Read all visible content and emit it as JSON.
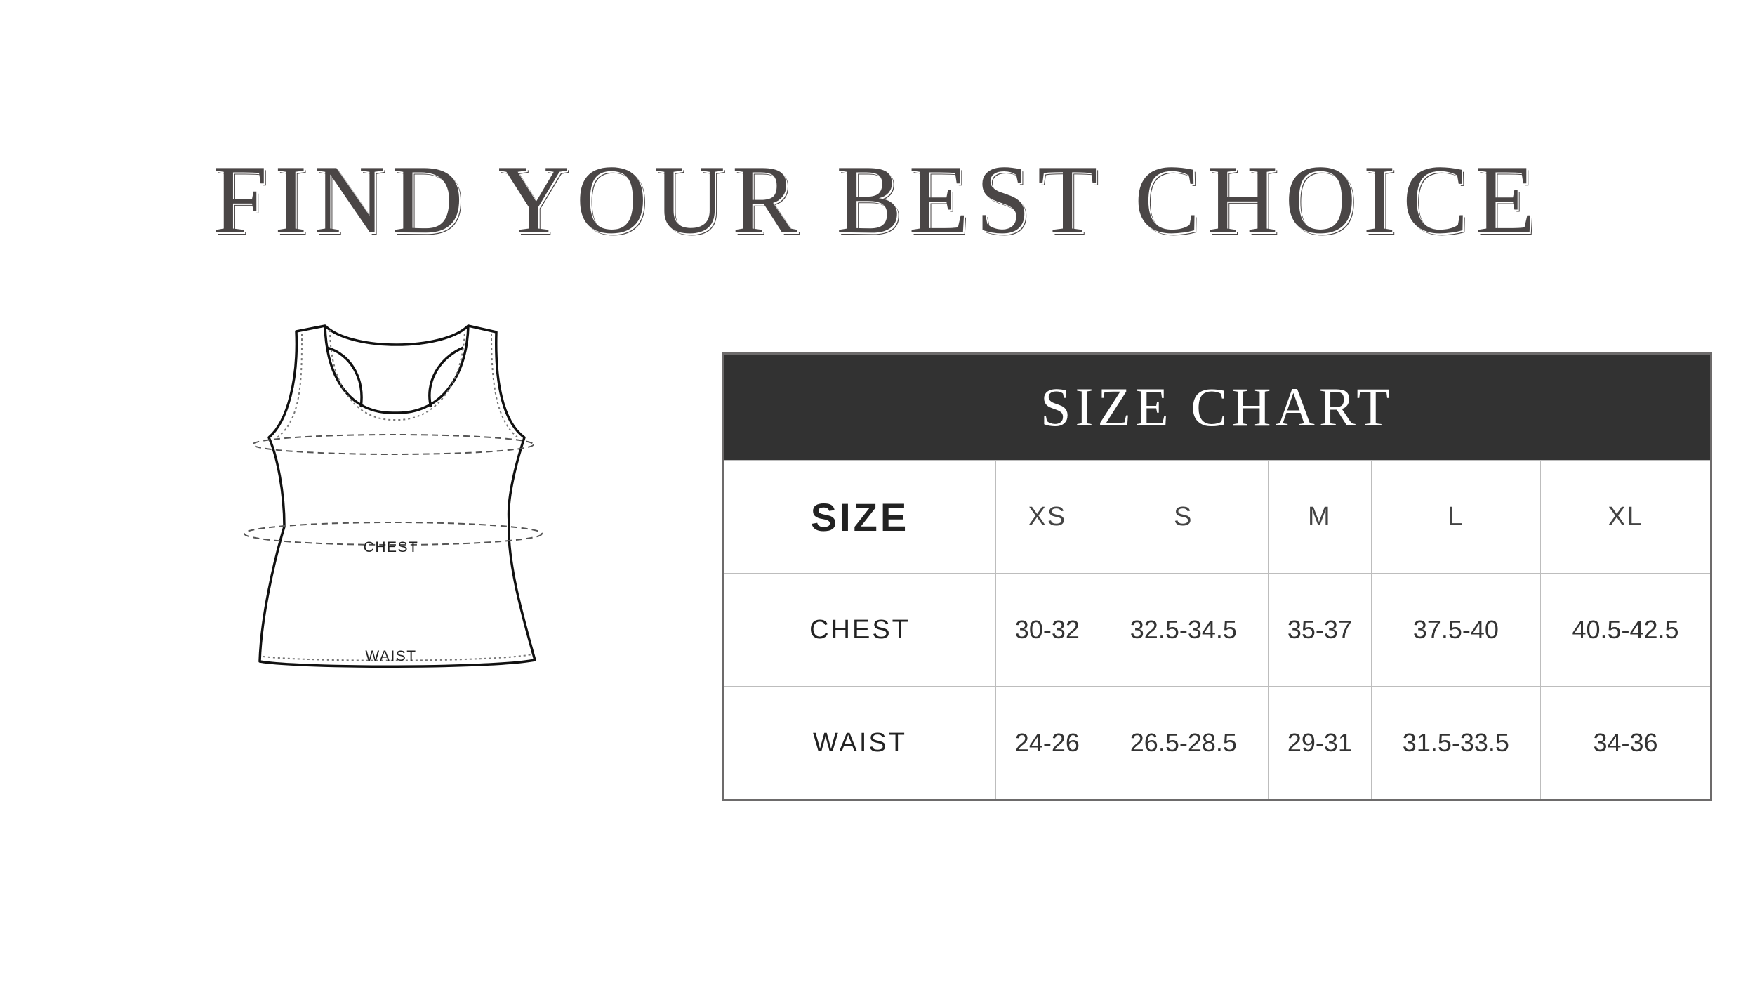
{
  "title": "FIND YOUR BEST CHOICE",
  "diagram": {
    "chest_label": "CHEST",
    "waist_label": "WAIST"
  },
  "size_chart": {
    "title": "SIZE CHART",
    "header": {
      "label": "SIZE",
      "sizes": [
        "XS",
        "S",
        "M",
        "L",
        "XL"
      ]
    },
    "rows": [
      {
        "label": "CHEST",
        "values": [
          "30-32",
          "32.5-34.5",
          "35-37",
          "37.5-40",
          "40.5-42.5"
        ]
      },
      {
        "label": "WAIST",
        "values": [
          "24-26",
          "26.5-28.5",
          "29-31",
          "31.5-33.5",
          "34-36"
        ]
      }
    ]
  },
  "colors": {
    "header_bg": "#323232",
    "text": "#333333"
  }
}
